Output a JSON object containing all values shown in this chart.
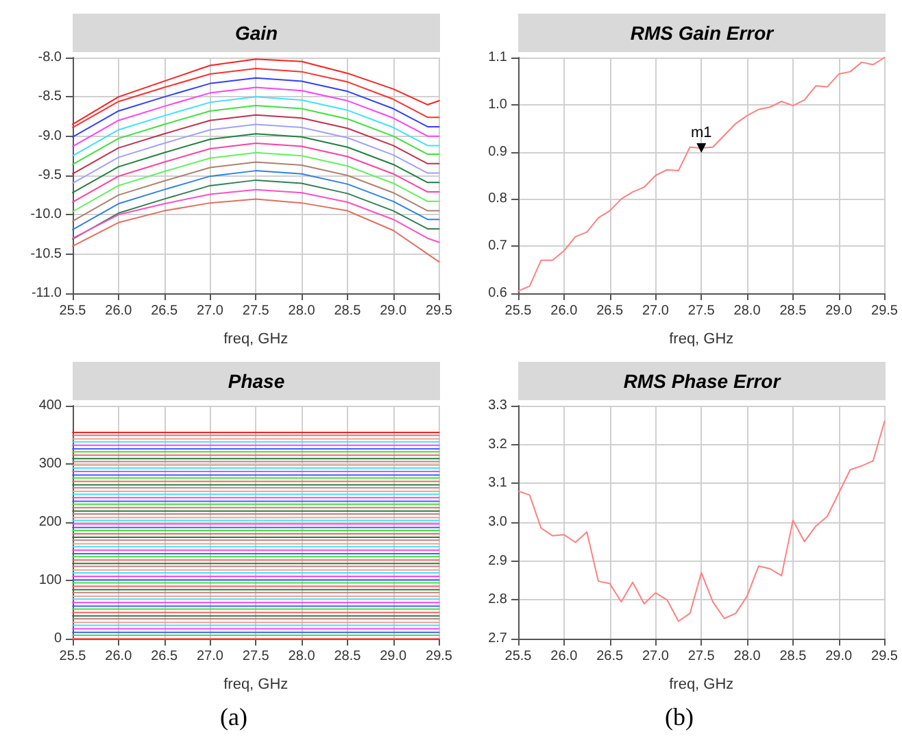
{
  "chart_data": [
    {
      "type": "line",
      "title": "Gain",
      "xlabel": "freq, GHz",
      "x": [
        25.5,
        26,
        26.5,
        27,
        27.5,
        28,
        28.5,
        29,
        29.375,
        29.5
      ],
      "xlim": [
        25.5,
        29.5
      ],
      "xticks": [
        25.5,
        {
          "value": 26,
          "label": "26.0"
        },
        26.5,
        {
          "value": 27,
          "label": "27.0"
        },
        27.5,
        {
          "value": 28,
          "label": "28.0"
        },
        28.5,
        {
          "value": 29,
          "label": "29.0"
        },
        29.5
      ],
      "ylim": [
        -11,
        -8
      ],
      "yticks": [
        {
          "value": -11,
          "label": "-11.0"
        },
        -10.5,
        {
          "value": -10,
          "label": "-10.0"
        },
        -9.5,
        {
          "value": -9,
          "label": "-9.0"
        },
        -8.5,
        {
          "value": -8,
          "label": "-8.0"
        }
      ],
      "grid": true,
      "marker": "none",
      "line_style": "solid",
      "series": [
        {
          "color": "#ff2020",
          "values": [
            -8.85,
            -8.5,
            -8.3,
            -8.1,
            -8.02,
            -8.05,
            -8.2,
            -8.4,
            -8.6,
            -8.55
          ]
        },
        {
          "color": "#ff3030",
          "values": [
            -8.89,
            -8.56,
            -8.38,
            -8.21,
            -8.14,
            -8.18,
            -8.31,
            -8.53,
            -8.76,
            -8.76
          ]
        },
        {
          "color": "#3040ff",
          "values": [
            -9.01,
            -8.68,
            -8.5,
            -8.33,
            -8.26,
            -8.3,
            -8.43,
            -8.65,
            -8.88,
            -8.88
          ]
        },
        {
          "color": "#ff40ff",
          "values": [
            -9.13,
            -8.8,
            -8.62,
            -8.45,
            -8.38,
            -8.42,
            -8.55,
            -8.77,
            -9.0,
            -9.0
          ]
        },
        {
          "color": "#40e0ff",
          "values": [
            -9.25,
            -8.92,
            -8.74,
            -8.57,
            -8.5,
            -8.54,
            -8.67,
            -8.89,
            -9.12,
            -9.12
          ]
        },
        {
          "color": "#40e040",
          "values": [
            -9.36,
            -9.03,
            -8.85,
            -8.68,
            -8.61,
            -8.65,
            -8.78,
            -9.0,
            -9.23,
            -9.23
          ]
        },
        {
          "color": "#c03050",
          "values": [
            -9.48,
            -9.15,
            -8.97,
            -8.8,
            -8.73,
            -8.77,
            -8.9,
            -9.12,
            -9.35,
            -9.35
          ]
        },
        {
          "color": "#a0a0ff",
          "values": [
            -9.6,
            -9.27,
            -9.09,
            -8.92,
            -8.85,
            -8.89,
            -9.02,
            -9.24,
            -9.47,
            -9.47
          ]
        },
        {
          "color": "#208040",
          "values": [
            -9.72,
            -9.39,
            -9.21,
            -9.04,
            -8.97,
            -9.01,
            -9.14,
            -9.36,
            -9.59,
            -9.59
          ]
        },
        {
          "color": "#ff40a0",
          "values": [
            -9.84,
            -9.51,
            -9.33,
            -9.16,
            -9.09,
            -9.13,
            -9.26,
            -9.48,
            -9.71,
            -9.71
          ]
        },
        {
          "color": "#60f060",
          "values": [
            -9.96,
            -9.63,
            -9.45,
            -9.28,
            -9.21,
            -9.25,
            -9.38,
            -9.6,
            -9.83,
            -9.83
          ]
        },
        {
          "color": "#b08070",
          "values": [
            -10.08,
            -9.75,
            -9.57,
            -9.4,
            -9.33,
            -9.37,
            -9.5,
            -9.72,
            -9.95,
            -9.95
          ]
        },
        {
          "color": "#3080e0",
          "values": [
            -10.19,
            -9.86,
            -9.68,
            -9.51,
            -9.44,
            -9.48,
            -9.61,
            -9.83,
            -10.06,
            -10.06
          ]
        },
        {
          "color": "#308050",
          "values": [
            -10.31,
            -9.98,
            -9.8,
            -9.63,
            -9.56,
            -9.6,
            -9.73,
            -9.95,
            -10.18,
            -10.18
          ]
        },
        {
          "color": "#ff50c0",
          "values": [
            -10.3,
            -10.0,
            -9.86,
            -9.74,
            -9.68,
            -9.72,
            -9.84,
            -10.06,
            -10.3,
            -10.35
          ]
        },
        {
          "color": "#e07060",
          "values": [
            -10.4,
            -10.1,
            -9.95,
            -9.85,
            -9.8,
            -9.85,
            -9.95,
            -10.2,
            -10.5,
            -10.6
          ]
        }
      ]
    },
    {
      "type": "line",
      "title": "RMS Gain Error",
      "xlabel": "freq, GHz",
      "x": [
        25.5,
        25.625,
        25.75,
        25.875,
        26,
        26.125,
        26.25,
        26.375,
        26.5,
        26.625,
        26.75,
        26.875,
        27,
        27.125,
        27.25,
        27.375,
        27.5,
        27.625,
        27.75,
        27.875,
        28,
        28.125,
        28.25,
        28.375,
        28.5,
        28.625,
        28.75,
        28.875,
        29,
        29.125,
        29.25,
        29.375,
        29.5
      ],
      "xlim": [
        25.5,
        29.5
      ],
      "xticks": [
        25.5,
        {
          "value": 26,
          "label": "26.0"
        },
        26.5,
        {
          "value": 27,
          "label": "27.0"
        },
        27.5,
        {
          "value": 28,
          "label": "28.0"
        },
        28.5,
        {
          "value": 29,
          "label": "29.0"
        },
        29.5
      ],
      "ylim": [
        0.6,
        1.1
      ],
      "yticks": [
        0.6,
        0.7,
        0.8,
        0.9,
        {
          "value": 1,
          "label": "1.0"
        },
        1.1
      ],
      "grid": true,
      "marker": "none",
      "line_style": "solid",
      "annotations": [
        {
          "text": "m1",
          "x": 27.5,
          "y": 0.908
        }
      ],
      "series": [
        {
          "color": "#ff8080",
          "values": [
            0.605,
            0.615,
            0.67,
            0.67,
            0.69,
            0.72,
            0.73,
            0.76,
            0.775,
            0.8,
            0.815,
            0.825,
            0.85,
            0.862,
            0.86,
            0.91,
            0.908,
            0.91,
            0.935,
            0.96,
            0.977,
            0.99,
            0.995,
            1.007,
            0.998,
            1.01,
            1.04,
            1.038,
            1.065,
            1.07,
            1.09,
            1.085,
            1.1
          ]
        }
      ]
    },
    {
      "type": "line",
      "title": "Phase",
      "xlabel": "freq, GHz",
      "x": [
        25.5,
        29.5
      ],
      "xlim": [
        25.5,
        29.5
      ],
      "xticks": [
        25.5,
        {
          "value": 26,
          "label": "26.0"
        },
        26.5,
        {
          "value": 27,
          "label": "27.0"
        },
        27.5,
        {
          "value": 28,
          "label": "28.0"
        },
        28.5,
        {
          "value": 29,
          "label": "29.0"
        },
        29.5
      ],
      "ylim": [
        0,
        400
      ],
      "yticks": [
        0,
        100,
        200,
        300,
        400
      ],
      "grid": true,
      "marker": "none",
      "line_style": "solid",
      "annotations": [
        "(a)"
      ],
      "series": [
        {
          "color": "#ff6060",
          "values": [
            0,
            0
          ]
        },
        {
          "color": "#40e040",
          "values": [
            6,
            6
          ]
        },
        {
          "color": "#4060ff",
          "values": [
            11,
            11
          ]
        },
        {
          "color": "#ff40ff",
          "values": [
            17,
            17
          ]
        },
        {
          "color": "#40e0ff",
          "values": [
            23,
            23
          ]
        },
        {
          "color": "#f0a090",
          "values": [
            28,
            28
          ]
        },
        {
          "color": "#c08080",
          "values": [
            34,
            34
          ]
        },
        {
          "color": "#208040",
          "values": [
            39,
            39
          ]
        },
        {
          "color": "#ff6060",
          "values": [
            45,
            45
          ]
        },
        {
          "color": "#40e040",
          "values": [
            51,
            51
          ]
        },
        {
          "color": "#4060ff",
          "values": [
            56,
            56
          ]
        },
        {
          "color": "#ff40ff",
          "values": [
            62,
            62
          ]
        },
        {
          "color": "#40e0ff",
          "values": [
            68,
            68
          ]
        },
        {
          "color": "#f0a090",
          "values": [
            73,
            73
          ]
        },
        {
          "color": "#c08080",
          "values": [
            79,
            79
          ]
        },
        {
          "color": "#208040",
          "values": [
            84,
            84
          ]
        },
        {
          "color": "#ff6060",
          "values": [
            90,
            90
          ]
        },
        {
          "color": "#40e040",
          "values": [
            96,
            96
          ]
        },
        {
          "color": "#4060ff",
          "values": [
            101,
            101
          ]
        },
        {
          "color": "#ff40ff",
          "values": [
            107,
            107
          ]
        },
        {
          "color": "#40e0ff",
          "values": [
            113,
            113
          ]
        },
        {
          "color": "#f0a090",
          "values": [
            118,
            118
          ]
        },
        {
          "color": "#c08080",
          "values": [
            124,
            124
          ]
        },
        {
          "color": "#208040",
          "values": [
            129,
            129
          ]
        },
        {
          "color": "#ff6060",
          "values": [
            135,
            135
          ]
        },
        {
          "color": "#40e040",
          "values": [
            141,
            141
          ]
        },
        {
          "color": "#4060ff",
          "values": [
            146,
            146
          ]
        },
        {
          "color": "#ff40ff",
          "values": [
            152,
            152
          ]
        },
        {
          "color": "#40e0ff",
          "values": [
            158,
            158
          ]
        },
        {
          "color": "#f0a090",
          "values": [
            163,
            163
          ]
        },
        {
          "color": "#c08080",
          "values": [
            169,
            169
          ]
        },
        {
          "color": "#208040",
          "values": [
            174,
            174
          ]
        },
        {
          "color": "#ff6060",
          "values": [
            180,
            180
          ]
        },
        {
          "color": "#40e040",
          "values": [
            186,
            186
          ]
        },
        {
          "color": "#4060ff",
          "values": [
            191,
            191
          ]
        },
        {
          "color": "#ff40ff",
          "values": [
            197,
            197
          ]
        },
        {
          "color": "#40e0ff",
          "values": [
            203,
            203
          ]
        },
        {
          "color": "#f0a090",
          "values": [
            208,
            208
          ]
        },
        {
          "color": "#c08080",
          "values": [
            214,
            214
          ]
        },
        {
          "color": "#208040",
          "values": [
            219,
            219
          ]
        },
        {
          "color": "#ff6060",
          "values": [
            225,
            225
          ]
        },
        {
          "color": "#40e040",
          "values": [
            231,
            231
          ]
        },
        {
          "color": "#4060ff",
          "values": [
            236,
            236
          ]
        },
        {
          "color": "#ff40ff",
          "values": [
            242,
            242
          ]
        },
        {
          "color": "#40e0ff",
          "values": [
            248,
            248
          ]
        },
        {
          "color": "#f0a090",
          "values": [
            253,
            253
          ]
        },
        {
          "color": "#c08080",
          "values": [
            259,
            259
          ]
        },
        {
          "color": "#208040",
          "values": [
            264,
            264
          ]
        },
        {
          "color": "#ff6060",
          "values": [
            270,
            270
          ]
        },
        {
          "color": "#40e040",
          "values": [
            276,
            276
          ]
        },
        {
          "color": "#4060ff",
          "values": [
            281,
            281
          ]
        },
        {
          "color": "#ff40ff",
          "values": [
            287,
            287
          ]
        },
        {
          "color": "#40e0ff",
          "values": [
            293,
            293
          ]
        },
        {
          "color": "#f0a090",
          "values": [
            298,
            298
          ]
        },
        {
          "color": "#c08080",
          "values": [
            304,
            304
          ]
        },
        {
          "color": "#208040",
          "values": [
            309,
            309
          ]
        },
        {
          "color": "#ff6060",
          "values": [
            315,
            315
          ]
        },
        {
          "color": "#40e040",
          "values": [
            321,
            321
          ]
        },
        {
          "color": "#4060ff",
          "values": [
            326,
            326
          ]
        },
        {
          "color": "#ff40ff",
          "values": [
            332,
            332
          ]
        },
        {
          "color": "#40e0ff",
          "values": [
            338,
            338
          ]
        },
        {
          "color": "#f0a090",
          "values": [
            343,
            343
          ]
        },
        {
          "color": "#c08080",
          "values": [
            349,
            349
          ]
        },
        {
          "color": "#ff2020",
          "values": [
            354,
            354
          ]
        }
      ]
    },
    {
      "type": "line",
      "title": "RMS Phase Error",
      "xlabel": "freq, GHz",
      "x": [
        25.5,
        25.625,
        25.75,
        25.875,
        26,
        26.125,
        26.25,
        26.375,
        26.5,
        26.625,
        26.75,
        26.875,
        27,
        27.125,
        27.25,
        27.375,
        27.5,
        27.625,
        27.75,
        27.875,
        28,
        28.125,
        28.25,
        28.375,
        28.5,
        28.625,
        28.75,
        28.875,
        29,
        29.125,
        29.25,
        29.375,
        29.5
      ],
      "xlim": [
        25.5,
        29.5
      ],
      "xticks": [
        25.5,
        {
          "value": 26,
          "label": "26.0"
        },
        26.5,
        {
          "value": 27,
          "label": "27.0"
        },
        27.5,
        {
          "value": 28,
          "label": "28.0"
        },
        28.5,
        {
          "value": 29,
          "label": "29.0"
        },
        29.5
      ],
      "ylim": [
        2.7,
        3.3
      ],
      "yticks": [
        2.7,
        2.8,
        2.9,
        {
          "value": 3,
          "label": "3.0"
        },
        3.1,
        3.2,
        3.3
      ],
      "grid": true,
      "marker": "none",
      "line_style": "solid",
      "annotations": [
        "(b)"
      ],
      "series": [
        {
          "color": "#ff8080",
          "values": [
            3.08,
            3.07,
            2.985,
            2.965,
            2.968,
            2.948,
            2.975,
            2.848,
            2.842,
            2.795,
            2.845,
            2.79,
            2.818,
            2.8,
            2.745,
            2.765,
            2.87,
            2.795,
            2.752,
            2.765,
            2.81,
            2.887,
            2.88,
            2.862,
            3.005,
            2.95,
            2.99,
            3.015,
            3.075,
            3.135,
            3.145,
            3.158,
            3.26
          ]
        }
      ]
    }
  ]
}
